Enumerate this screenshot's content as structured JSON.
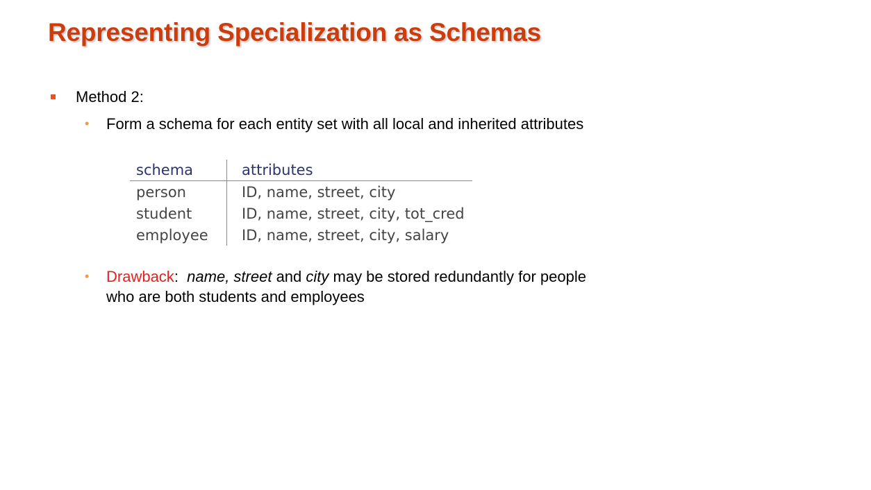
{
  "slide": {
    "title": "Representing Specialization as Schemas"
  },
  "content": {
    "method_label": "Method 2:",
    "point1": "Form a schema for each entity set with all local and inherited attributes",
    "drawback": {
      "label": "Drawback",
      "colon": ":",
      "italic1": "name, street",
      "and": " and ",
      "italic2": "city",
      "rest": " may be stored redundantly for people who are both students and employees"
    }
  },
  "table": {
    "headers": [
      "schema",
      "attributes"
    ],
    "rows": [
      [
        "person",
        "ID, name, street, city"
      ],
      [
        "student",
        "ID, name, street, city, tot_cred"
      ],
      [
        "employee",
        "ID, name, street, city, salary"
      ]
    ]
  },
  "colors": {
    "title": "#cc3d0e",
    "bullet_l1": "#e8521d",
    "bullet_l2": "#f39a3e",
    "drawback": "#e32020",
    "table_header": "#2b3471"
  }
}
